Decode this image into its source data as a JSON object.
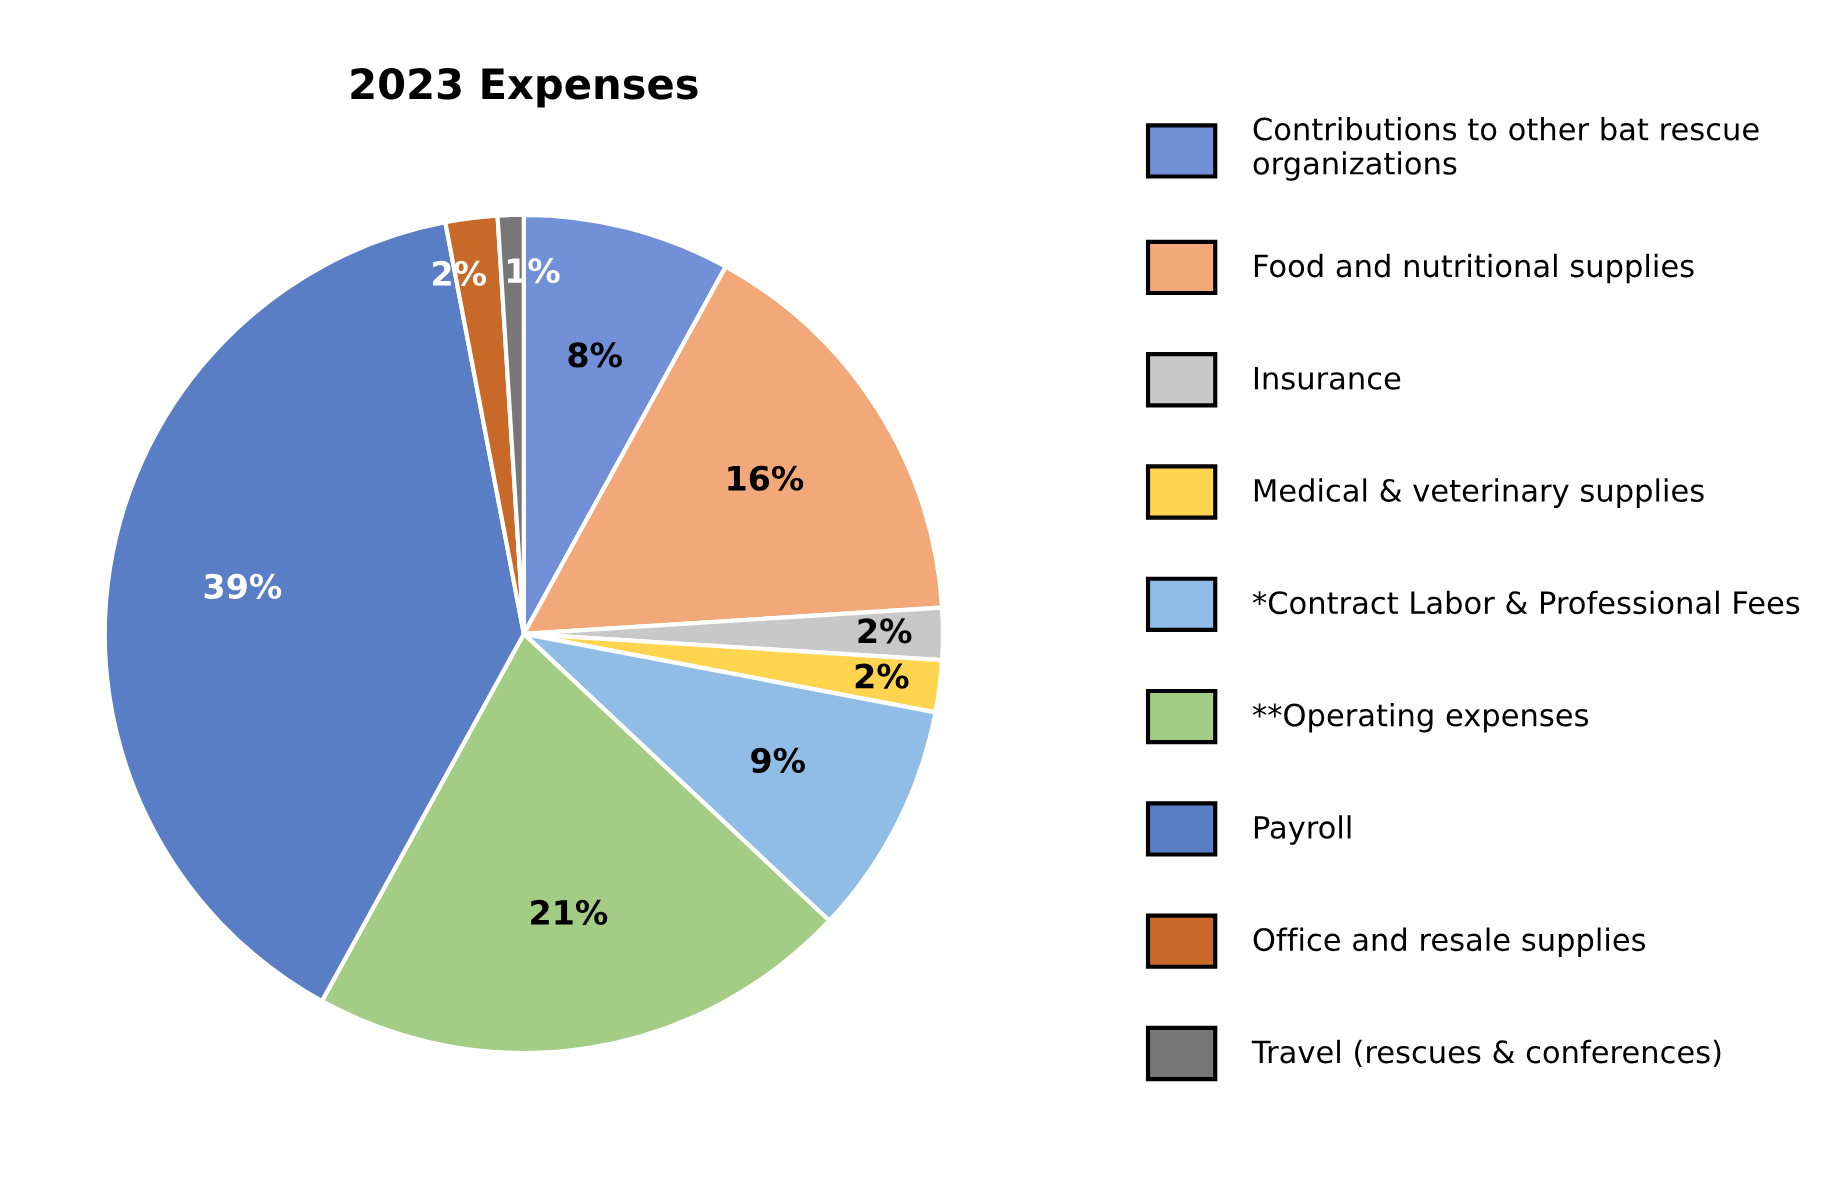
{
  "chart_data": {
    "type": "pie",
    "title": "2023 Expenses",
    "categories": [
      "Contributions to other bat rescue organizations",
      "Food and nutritional supplies",
      "Insurance",
      "Medical & veterinary supplies",
      "*Contract Labor & Professional Fees",
      "**Operating expenses",
      "Payroll",
      "Office and resale supplies",
      "Travel (rescues & conferences)"
    ],
    "values": [
      8,
      16,
      2,
      2,
      9,
      21,
      39,
      2,
      1
    ],
    "colors": [
      "#7290d8",
      "#f2a878",
      "#c8c8c8",
      "#ffd54f",
      "#90bde6",
      "#a3cc85",
      "#5a7ec6",
      "#c8692a",
      "#777777"
    ],
    "value_labels": [
      "8%",
      "16%",
      "2%",
      "2%",
      "9%",
      "21%",
      "39%",
      "2%",
      "1%"
    ],
    "legend": "right"
  }
}
